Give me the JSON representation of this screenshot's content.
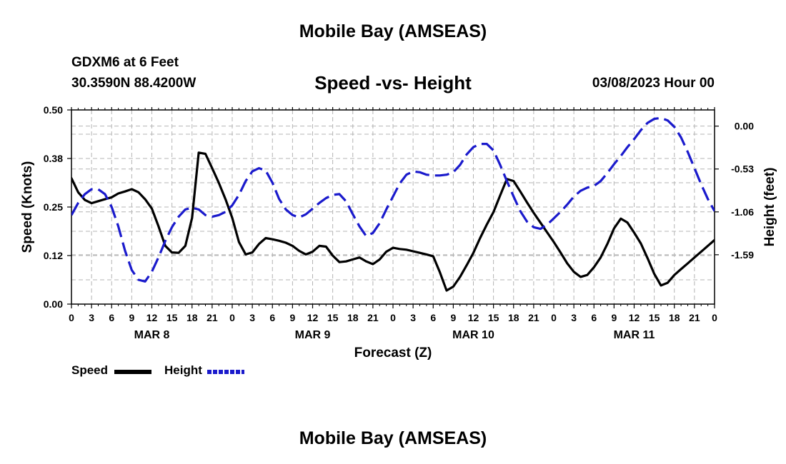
{
  "header": {
    "title": "Mobile Bay (AMSEAS)",
    "station": "GDXM6 at 6 Feet",
    "coords": "30.3590N  88.4200W",
    "subtitle": "Speed -vs- Height",
    "run_time": "03/08/2023 Hour 00"
  },
  "footer": {
    "title": "Mobile Bay (AMSEAS)"
  },
  "legend": {
    "speed_label": "Speed",
    "height_label": "Height"
  },
  "chart_data": {
    "type": "line",
    "title": "Speed -vs- Height",
    "xlabel": "Forecast (Z)",
    "ylabel_left": "Speed (Knots)",
    "ylabel_right": "Height (feet)",
    "xlim": [
      0,
      96
    ],
    "ylim_left": [
      0,
      0.5
    ],
    "ylim_right": [
      -2.2,
      0.2
    ],
    "grid": true,
    "legend": "bottom-left",
    "x_tick_labels": [
      "0",
      "3",
      "6",
      "9",
      "12",
      "15",
      "18",
      "21",
      "0",
      "3",
      "6",
      "9",
      "12",
      "15",
      "18",
      "21",
      "0",
      "3",
      "6",
      "9",
      "12",
      "15",
      "18",
      "21",
      "0",
      "3",
      "6",
      "9",
      "12",
      "15",
      "18",
      "21",
      "0"
    ],
    "day_labels": [
      {
        "label": "MAR 8",
        "hour": 12
      },
      {
        "label": "MAR 9",
        "hour": 36
      },
      {
        "label": "MAR 10",
        "hour": 60
      },
      {
        "label": "MAR 11",
        "hour": 84
      }
    ],
    "left_ticks": [
      {
        "value": 0.0,
        "label": "0.00"
      },
      {
        "value": 0.125,
        "label": "0.12"
      },
      {
        "value": 0.25,
        "label": "0.25"
      },
      {
        "value": 0.375,
        "label": "0.38"
      },
      {
        "value": 0.5,
        "label": "0.50"
      }
    ],
    "right_ticks": [
      {
        "value": -1.59,
        "label": "-1.59"
      },
      {
        "value": -1.06,
        "label": "-1.06"
      },
      {
        "value": -0.53,
        "label": "-0.53"
      },
      {
        "value": 0.0,
        "label": "0.00"
      }
    ],
    "series": [
      {
        "name": "Speed",
        "axis": "left",
        "color": "#000000",
        "style": "solid",
        "x": [
          0,
          1,
          2,
          3,
          4,
          5,
          6,
          7,
          8,
          9,
          10,
          11,
          12,
          13,
          14,
          15,
          16,
          17,
          18,
          19,
          20,
          21,
          22,
          23,
          24,
          25,
          26,
          27,
          28,
          29,
          30,
          31,
          32,
          33,
          34,
          35,
          36,
          37,
          38,
          39,
          40,
          41,
          42,
          43,
          44,
          45,
          46,
          47,
          48,
          49,
          50,
          51,
          52,
          53,
          54,
          55,
          56,
          57,
          58,
          59,
          60,
          61,
          62,
          63,
          64,
          65,
          66,
          67,
          68,
          69,
          70,
          71,
          72,
          73,
          74,
          75,
          76,
          77,
          78,
          79,
          80,
          81,
          82,
          83,
          84,
          85,
          86,
          87,
          88,
          89,
          90,
          91,
          92,
          93,
          94,
          95,
          96
        ],
        "values": [
          0.324,
          0.288,
          0.268,
          0.26,
          0.265,
          0.27,
          0.275,
          0.285,
          0.29,
          0.296,
          0.288,
          0.27,
          0.246,
          0.2,
          0.15,
          0.133,
          0.132,
          0.15,
          0.222,
          0.39,
          0.387,
          0.35,
          0.312,
          0.27,
          0.222,
          0.16,
          0.128,
          0.133,
          0.155,
          0.17,
          0.167,
          0.163,
          0.158,
          0.15,
          0.137,
          0.128,
          0.135,
          0.15,
          0.148,
          0.125,
          0.108,
          0.11,
          0.115,
          0.12,
          0.11,
          0.103,
          0.115,
          0.135,
          0.145,
          0.142,
          0.14,
          0.136,
          0.132,
          0.128,
          0.123,
          0.082,
          0.035,
          0.045,
          0.07,
          0.1,
          0.132,
          0.17,
          0.205,
          0.237,
          0.28,
          0.322,
          0.317,
          0.29,
          0.262,
          0.235,
          0.21,
          0.185,
          0.16,
          0.133,
          0.105,
          0.083,
          0.07,
          0.075,
          0.095,
          0.12,
          0.155,
          0.195,
          0.22,
          0.21,
          0.184,
          0.156,
          0.118,
          0.078,
          0.048,
          0.055,
          0.075,
          0.09,
          0.105,
          0.12,
          0.135,
          0.15,
          0.165
        ]
      },
      {
        "name": "Height",
        "axis": "right",
        "color": "#1a1acc",
        "style": "dashed",
        "x": [
          0,
          1,
          2,
          3,
          4,
          5,
          6,
          7,
          8,
          9,
          10,
          11,
          12,
          13,
          14,
          15,
          16,
          17,
          18,
          19,
          20,
          21,
          22,
          23,
          24,
          25,
          26,
          27,
          28,
          29,
          30,
          31,
          32,
          33,
          34,
          35,
          36,
          37,
          38,
          39,
          40,
          41,
          42,
          43,
          44,
          45,
          46,
          47,
          48,
          49,
          50,
          51,
          52,
          53,
          54,
          55,
          56,
          57,
          58,
          59,
          60,
          61,
          62,
          63,
          64,
          65,
          66,
          67,
          68,
          69,
          70,
          71,
          72,
          73,
          74,
          75,
          76,
          77,
          78,
          79,
          80,
          81,
          82,
          83,
          84,
          85,
          86,
          87,
          88,
          89,
          90,
          91,
          92,
          93,
          94,
          95,
          96
        ],
        "values": [
          -1.1,
          -0.95,
          -0.84,
          -0.78,
          -0.78,
          -0.84,
          -1.0,
          -1.24,
          -1.54,
          -1.78,
          -1.9,
          -1.92,
          -1.8,
          -1.62,
          -1.42,
          -1.25,
          -1.12,
          -1.03,
          -1.01,
          -1.03,
          -1.1,
          -1.12,
          -1.1,
          -1.06,
          -0.98,
          -0.85,
          -0.68,
          -0.56,
          -0.52,
          -0.55,
          -0.7,
          -0.9,
          -1.03,
          -1.1,
          -1.13,
          -1.09,
          -1.02,
          -0.95,
          -0.89,
          -0.85,
          -0.84,
          -0.93,
          -1.09,
          -1.24,
          -1.36,
          -1.32,
          -1.2,
          -1.03,
          -0.87,
          -0.71,
          -0.6,
          -0.56,
          -0.57,
          -0.6,
          -0.61,
          -0.61,
          -0.6,
          -0.57,
          -0.48,
          -0.35,
          -0.26,
          -0.22,
          -0.22,
          -0.3,
          -0.48,
          -0.68,
          -0.87,
          -1.05,
          -1.18,
          -1.25,
          -1.27,
          -1.22,
          -1.14,
          -1.06,
          -0.97,
          -0.87,
          -0.8,
          -0.76,
          -0.74,
          -0.68,
          -0.58,
          -0.47,
          -0.37,
          -0.26,
          -0.16,
          -0.05,
          0.04,
          0.09,
          0.1,
          0.07,
          -0.01,
          -0.14,
          -0.32,
          -0.52,
          -0.72,
          -0.9,
          -1.05
        ]
      }
    ]
  }
}
